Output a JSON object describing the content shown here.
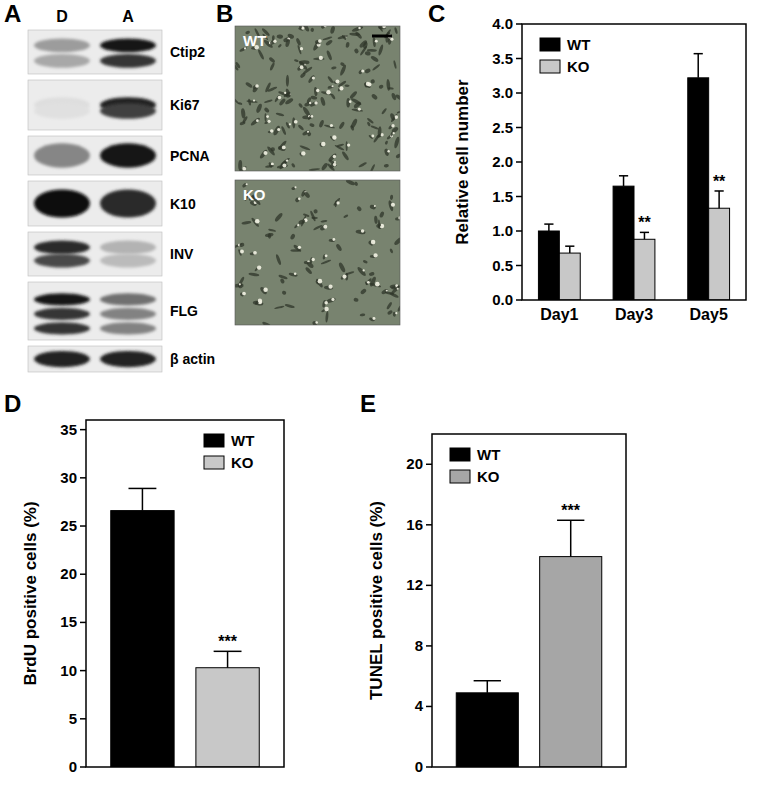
{
  "panel_labels": [
    "A",
    "B",
    "C",
    "D",
    "E"
  ],
  "western_blot": {
    "lanes": [
      "D",
      "A"
    ],
    "proteins": [
      "Ctip2",
      "Ki67",
      "PCNA",
      "K10",
      "INV",
      "FLG",
      "β actin"
    ]
  },
  "micrographs": {
    "labels": [
      "WT",
      "KO"
    ]
  },
  "chart_data": [
    {
      "type": "bar",
      "y_label": "Relative cell number",
      "categories": [
        "Day1",
        "Day3",
        "Day5"
      ],
      "series": [
        {
          "name": "WT",
          "color": "#000000",
          "values": [
            1.0,
            1.65,
            3.22
          ],
          "errors": [
            0.1,
            0.15,
            0.35
          ]
        },
        {
          "name": "KO",
          "color": "#c8c8c8",
          "values": [
            0.68,
            0.88,
            1.33
          ],
          "errors": [
            0.1,
            0.1,
            0.25
          ],
          "annotations": [
            null,
            "**",
            "**"
          ]
        }
      ],
      "ylim": [
        0,
        4
      ],
      "yticks": [
        {
          "value": 0,
          "label": "0.0"
        },
        {
          "value": 0.5,
          "label": "0.5"
        },
        {
          "value": 1,
          "label": "1.0"
        },
        {
          "value": 1.5,
          "label": "1.5"
        },
        {
          "value": 2,
          "label": "2.0"
        },
        {
          "value": 2.5,
          "label": "2.5"
        },
        {
          "value": 3,
          "label": "3.0"
        },
        {
          "value": 3.5,
          "label": "3.5"
        },
        {
          "value": 4,
          "label": "4.0"
        }
      ],
      "legend": "top-left"
    },
    {
      "type": "bar",
      "y_label": "BrdU positive cells (%)",
      "categories": [
        null
      ],
      "series": [
        {
          "name": "WT",
          "color": "#000000",
          "values": [
            26.6
          ],
          "errors": [
            2.3
          ]
        },
        {
          "name": "KO",
          "color": "#c8c8c8",
          "values": [
            10.3
          ],
          "errors": [
            1.7
          ],
          "annotations": [
            "***"
          ]
        }
      ],
      "ylim": [
        0,
        36
      ],
      "yticks": [
        0,
        5,
        10,
        15,
        20,
        25,
        30,
        35
      ],
      "legend": "top-right"
    },
    {
      "type": "bar",
      "y_label": "TUNEL positive cells (%)",
      "categories": [
        null
      ],
      "series": [
        {
          "name": "WT",
          "color": "#000000",
          "values": [
            4.9
          ],
          "errors": [
            0.8
          ]
        },
        {
          "name": "KO",
          "color": "#a6a6a6",
          "values": [
            13.9
          ],
          "errors": [
            2.4
          ],
          "annotations": [
            "***"
          ]
        }
      ],
      "ylim": [
        0,
        22
      ],
      "yticks": [
        0,
        4,
        8,
        12,
        16,
        20
      ],
      "legend": "top-left"
    }
  ]
}
